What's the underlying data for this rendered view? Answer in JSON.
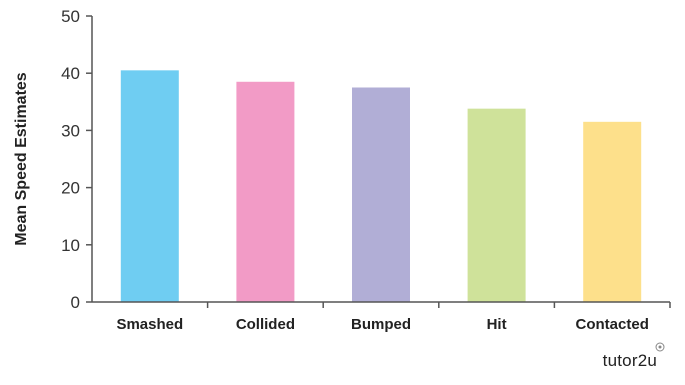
{
  "chart_data": {
    "type": "bar",
    "categories": [
      "Smashed",
      "Collided",
      "Bumped",
      "Hit",
      "Contacted"
    ],
    "values": [
      40.5,
      38.5,
      37.5,
      33.8,
      31.5
    ],
    "colors": [
      "#6fcdf2",
      "#f29bc6",
      "#b1aed6",
      "#cfe29a",
      "#fde08b"
    ],
    "title": "",
    "xlabel": "",
    "ylabel": "Mean Speed Estimates",
    "ylim": [
      0,
      50
    ],
    "yticks": [
      0,
      10,
      20,
      30,
      40,
      50
    ],
    "grid": false,
    "legend": "none"
  },
  "branding": {
    "text": "tutor2u",
    "icon": "tutor2u-mark-icon"
  }
}
